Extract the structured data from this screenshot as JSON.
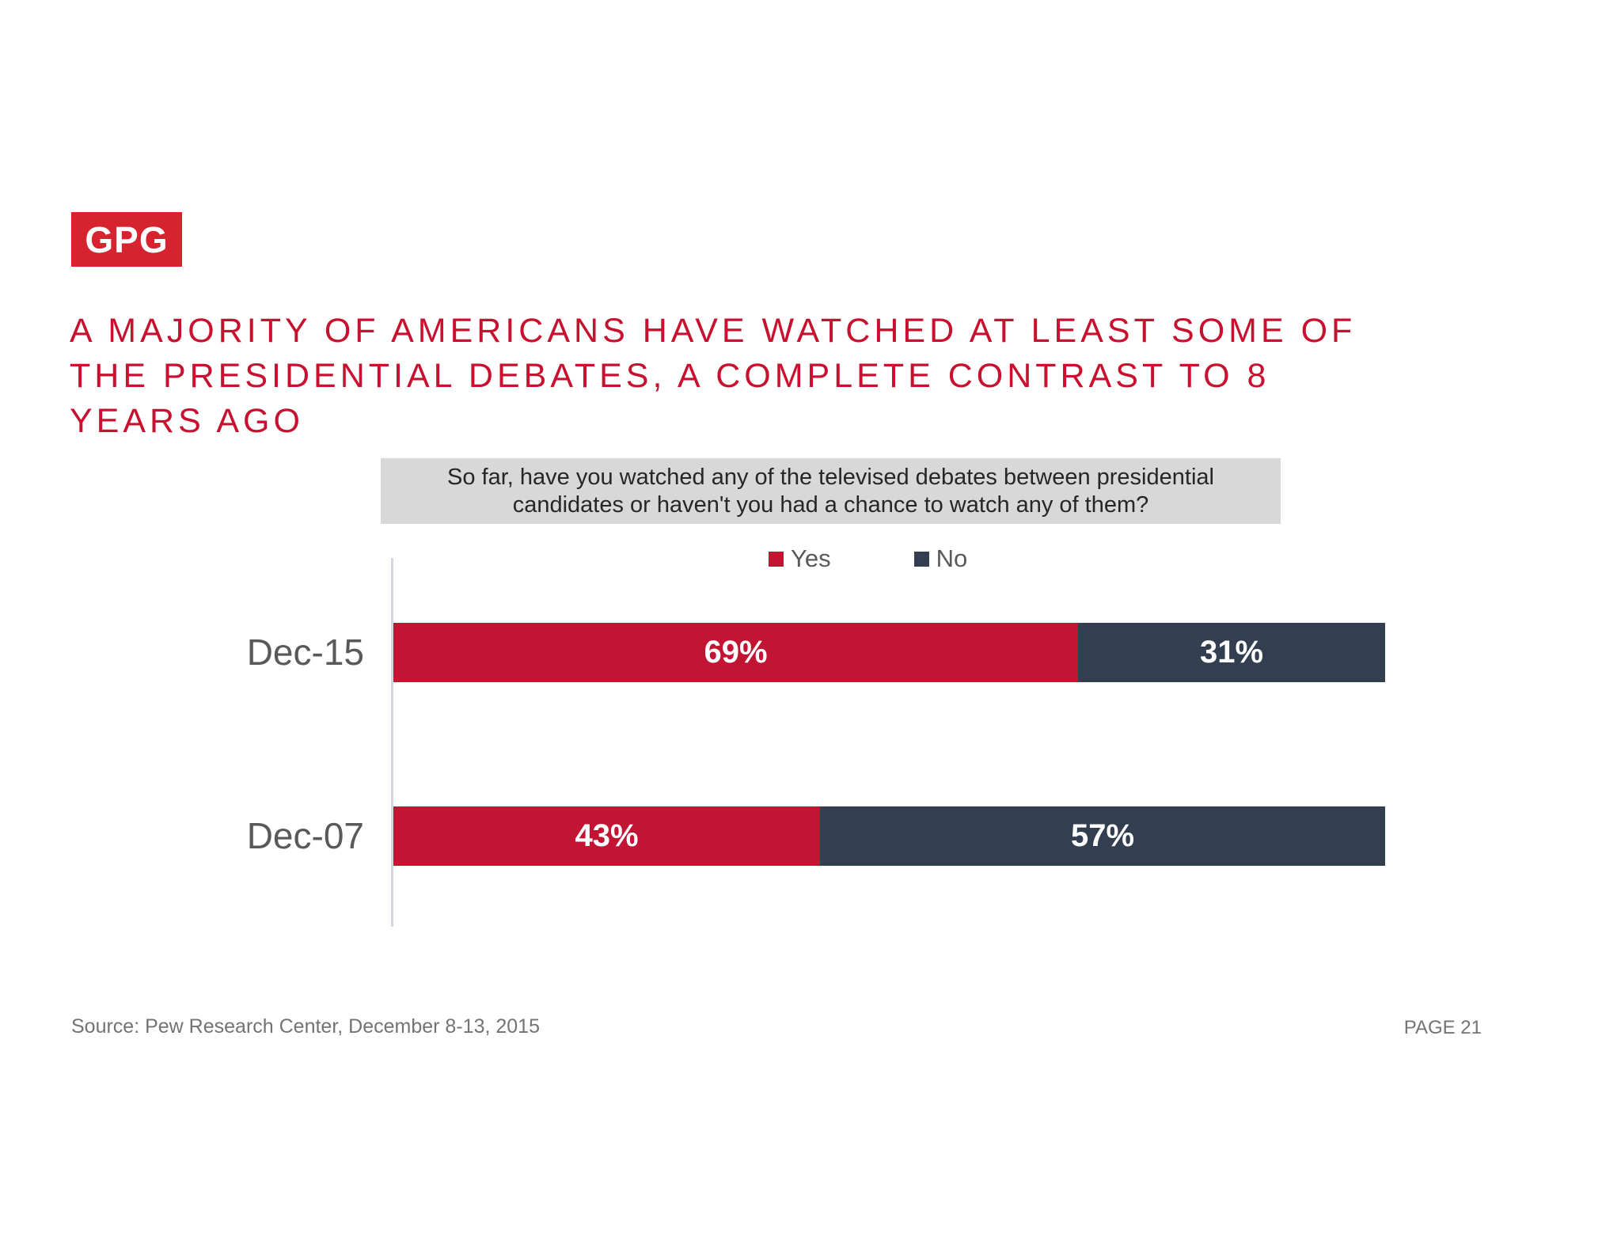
{
  "colors": {
    "logo_red": "#D7232F",
    "title_red": "#C8112F",
    "bar_yes_red": "#C21433",
    "bar_no_navy": "#333F51",
    "question_bg": "#D8D8D8"
  },
  "logo": {
    "text": "GPG"
  },
  "header": {
    "title_lines": [
      "A MAJORITY OF AMERICANS HAVE WATCHED AT LEAST SOME OF",
      "THE PRESIDENTIAL DEBATES, A COMPLETE CONTRAST TO 8",
      "YEARS AGO"
    ]
  },
  "chart_data": {
    "type": "bar",
    "orientation": "horizontal",
    "stacked": true,
    "title": "So far, have you watched any of the televised debates between presidential candidates or haven't you had a chance to watch any of them?",
    "categories": [
      "Dec-15",
      "Dec-07"
    ],
    "series": [
      {
        "name": "Yes",
        "color": "#C21433",
        "values": [
          69,
          43
        ]
      },
      {
        "name": "No",
        "color": "#333F51",
        "values": [
          31,
          57
        ]
      }
    ],
    "value_format": "percent",
    "xlim": [
      0,
      100
    ],
    "legend_position": "top",
    "grid": false
  },
  "footer": {
    "source": "Source: Pew Research Center, December 8-13, 2015",
    "page": "PAGE 21"
  }
}
